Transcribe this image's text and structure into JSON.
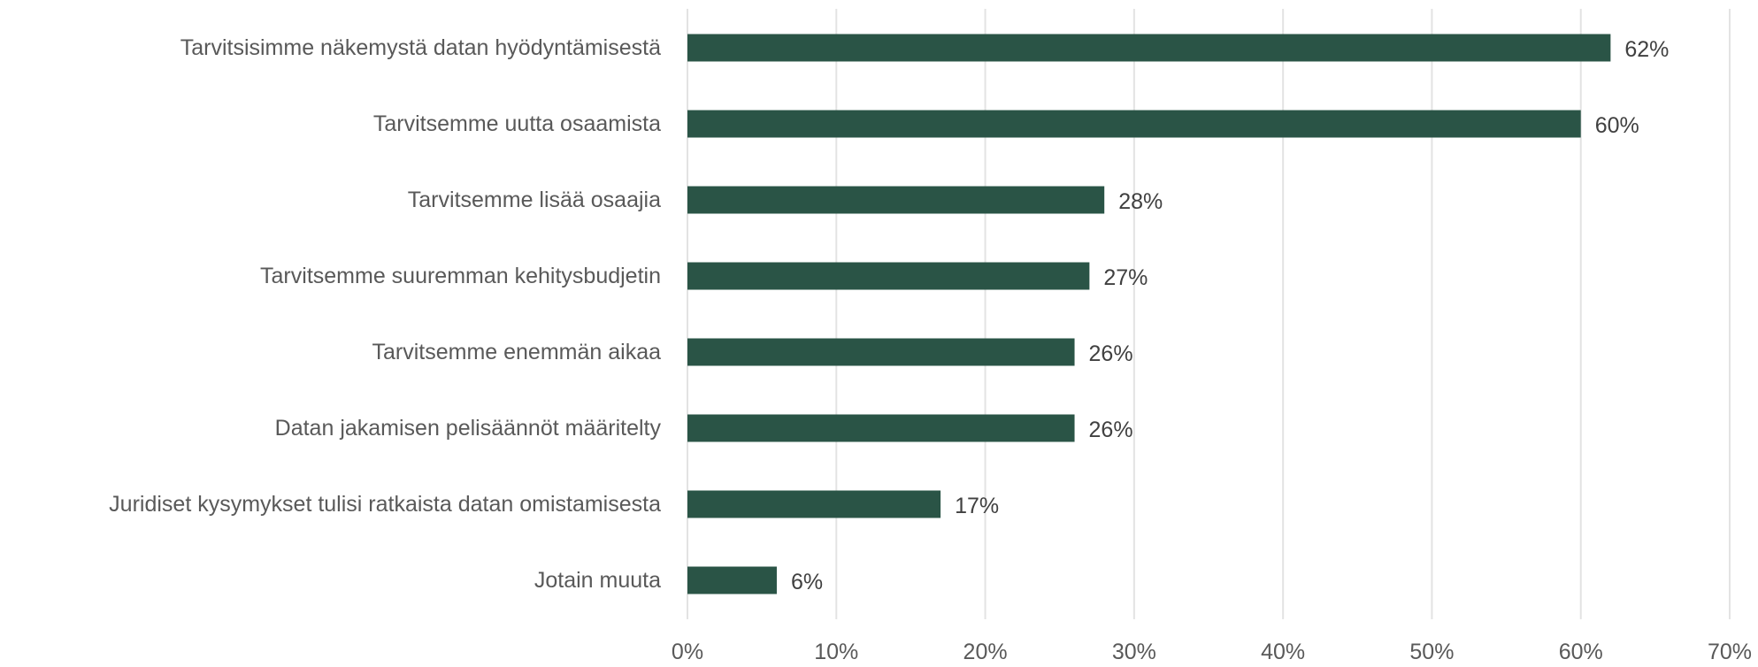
{
  "chart_data": {
    "type": "bar",
    "orientation": "horizontal",
    "categories": [
      "Tarvitsisimme näkemystä datan hyödyntämisestä",
      "Tarvitsemme uutta osaamista",
      "Tarvitsemme lisää osaajia",
      "Tarvitsemme suuremman kehitysbudjetin",
      "Tarvitsemme enemmän aikaa",
      "Datan jakamisen pelisäännöt määritelty",
      "Juridiset kysymykset tulisi ratkaista datan omistamisesta",
      "Jotain muuta"
    ],
    "values": [
      62,
      60,
      28,
      27,
      26,
      26,
      17,
      6
    ],
    "value_labels": [
      "62%",
      "60%",
      "28%",
      "27%",
      "26%",
      "26%",
      "17%",
      "6%"
    ],
    "x_ticks": [
      0,
      10,
      20,
      30,
      40,
      50,
      60,
      70
    ],
    "x_tick_labels": [
      "0%",
      "10%",
      "20%",
      "30%",
      "40%",
      "50%",
      "60%",
      "70%"
    ],
    "xlim": [
      0,
      70
    ],
    "grid": true,
    "title": "",
    "xlabel": "",
    "ylabel": "",
    "bar_color": "#2a5446",
    "gridline_color": "#e3e3e3",
    "label_color": "#595959"
  }
}
